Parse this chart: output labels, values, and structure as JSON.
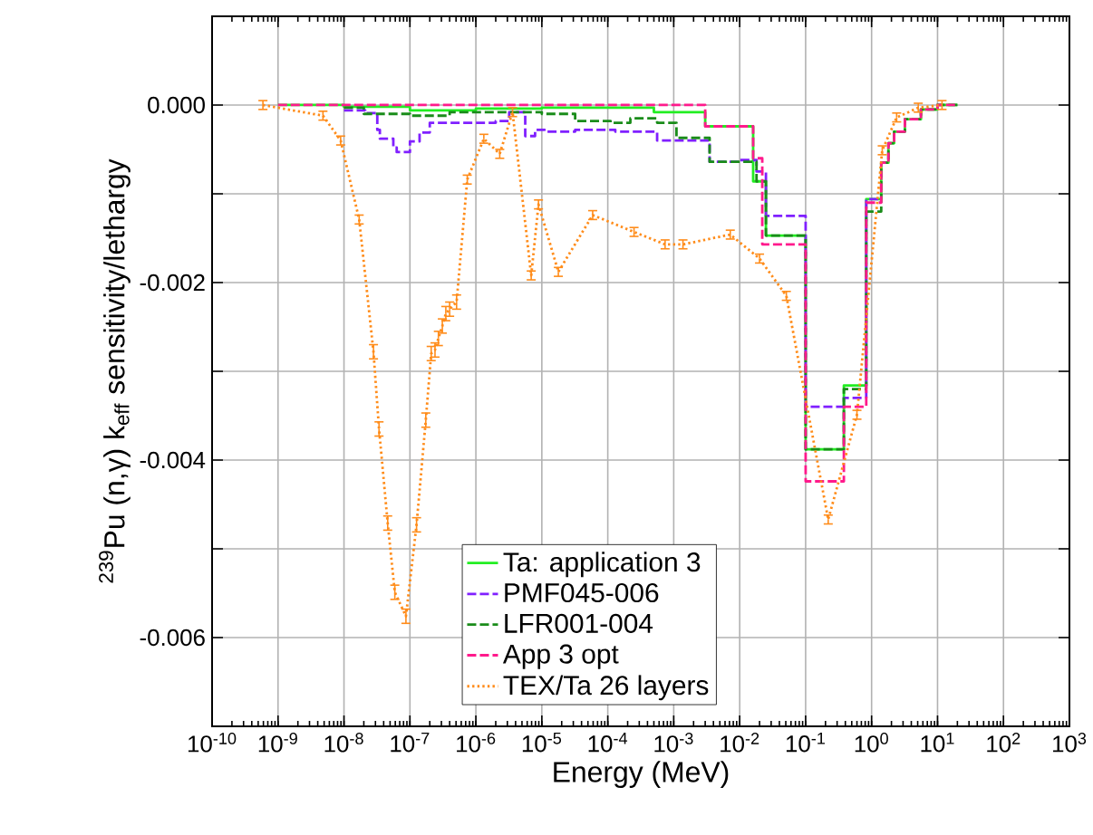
{
  "chart_data": {
    "type": "step",
    "xlabel": "Energy (MeV)",
    "ylabel": "$^{239}$Pu (n,γ) k$_{eff}$ sensitivity/lethargy",
    "log": "x",
    "xlim": [
      1e-10,
      1000
    ],
    "ylim": [
      -0.007,
      0.001
    ],
    "xticks": [
      {
        "value": 1e-10,
        "label": "10$^{-10}$"
      },
      {
        "value": 1e-09,
        "label": "10$^{-9}$"
      },
      {
        "value": 1e-08,
        "label": "10$^{-8}$"
      },
      {
        "value": 1e-07,
        "label": "10$^{-7}$"
      },
      {
        "value": 1e-06,
        "label": "10$^{-6}$"
      },
      {
        "value": 1e-05,
        "label": "10$^{-5}$"
      },
      {
        "value": 0.0001,
        "label": "10$^{-4}$"
      },
      {
        "value": 0.001,
        "label": "10$^{-3}$"
      },
      {
        "value": 0.01,
        "label": "10$^{-2}$"
      },
      {
        "value": 0.1,
        "label": "10$^{-1}$"
      },
      {
        "value": 1,
        "label": "10$^{0}$"
      },
      {
        "value": 10,
        "label": "10$^{1}$"
      },
      {
        "value": 100,
        "label": "10$^{2}$"
      },
      {
        "value": 1000,
        "label": "10$^{3}$"
      }
    ],
    "yticks": [
      {
        "value": -0.006,
        "label": "-0.006"
      },
      {
        "value": -0.005,
        "label": null
      },
      {
        "value": -0.004,
        "label": "-0.004"
      },
      {
        "value": -0.003,
        "label": null
      },
      {
        "value": -0.002,
        "label": "-0.002"
      },
      {
        "value": -0.001,
        "label": null
      },
      {
        "value": 0,
        "label": "0.000"
      }
    ],
    "grid": true,
    "legend": "bottom",
    "marker": "none",
    "series": [
      {
        "name": "Ta: application 3",
        "line_style": "solid",
        "color": "#22ee22",
        "x": [
          1e-09,
          1e-08,
          1e-07,
          1e-06,
          1e-05,
          0.0005,
          0.003,
          0.016,
          0.025,
          0.1,
          0.38,
          0.83,
          1.4,
          1.8,
          2.2,
          3.2,
          5.6,
          10,
          20
        ],
        "values": [
          0,
          -2e-05,
          -6e-05,
          -4e-05,
          -3e-05,
          -8e-05,
          -0.00024,
          -0.00086,
          -0.00147,
          -0.00388,
          -0.00316,
          -0.00106,
          -0.00065,
          -0.00043,
          -0.0003,
          -0.00016,
          -5e-05,
          0,
          0
        ]
      },
      {
        "name": "PMF045-006",
        "line_style": "dashed",
        "color": "#8020ff",
        "x": [
          1e-08,
          2.1e-08,
          3.2e-08,
          3.5e-08,
          5.6e-08,
          6.3e-08,
          1e-07,
          1.4e-07,
          2e-07,
          2e-06,
          3.2e-06,
          5.6e-06,
          7.9e-06,
          1.1e-05,
          3.2e-05,
          0.00013,
          0.00056,
          0.0035,
          0.01,
          0.018,
          0.025,
          0.1,
          0.38,
          0.83,
          1.4
        ],
        "values": [
          -6e-05,
          -9e-05,
          -0.00028,
          -0.00038,
          -0.00048,
          -0.00053,
          -0.00041,
          -0.00031,
          -0.0002,
          -0.00018,
          -8e-05,
          -0.00035,
          -0.00028,
          -0.0003,
          -0.00028,
          -0.0003,
          -0.0004,
          -0.00064,
          -0.00062,
          -0.00075,
          -0.00125,
          -0.0034,
          -0.0033,
          -0.00106,
          -0.00106
        ]
      },
      {
        "name": "LFR001-004",
        "line_style": "dashed",
        "color": "#1a8c1a",
        "x": [
          1e-08,
          2e-08,
          1e-07,
          4e-07,
          1e-05,
          3.2e-05,
          0.00011,
          0.00022,
          0.00056,
          0.0011,
          0.0035,
          0.018,
          0.025,
          0.1,
          0.38,
          0.83,
          1.4,
          1.8,
          2.2,
          3.2,
          5.6,
          10,
          20
        ],
        "values": [
          -3e-05,
          -0.0001,
          -0.00012,
          -8e-05,
          -0.0001,
          -0.00018,
          -0.0002,
          -0.00015,
          -0.0002,
          -0.00037,
          -0.00064,
          -0.00086,
          -0.00147,
          -0.00388,
          -0.0032,
          -0.0012,
          -0.00065,
          -0.00043,
          -0.0003,
          -0.00016,
          -5e-05,
          0,
          0
        ]
      },
      {
        "name": "App 3 opt",
        "line_style": "dashed",
        "color": "#ff1a8c",
        "x": [
          1e-09,
          0.003,
          0.016,
          0.022,
          0.1,
          0.38,
          0.83,
          1.4,
          1.8,
          2.2,
          3.2,
          5.6,
          10,
          20
        ],
        "values": [
          0,
          -0.00024,
          -0.0006,
          -0.00157,
          -0.00424,
          -0.0034,
          -0.0011,
          -0.00065,
          -0.00043,
          -0.0003,
          -0.00016,
          -5e-05,
          0,
          0
        ]
      },
      {
        "name": "TEX/Ta 26 layers",
        "type": "line",
        "line_style": "dotted",
        "color": "#ff8c1a",
        "x": [
          5.9e-10,
          4.8e-09,
          8.9e-09,
          1.7e-08,
          2.8e-08,
          3.4e-08,
          4.6e-08,
          5.9e-08,
          8.7e-08,
          1.26e-07,
          1.74e-07,
          2.1e-07,
          2.4e-07,
          2.7e-07,
          3.1e-07,
          3.5e-07,
          4e-07,
          5.1e-07,
          7.4e-07,
          1.32e-06,
          2.3e-06,
          3.6e-06,
          6.9e-06,
          8.9e-06,
          1.78e-05,
          5.9e-05,
          0.00025,
          0.00074,
          0.00138,
          0.0072,
          0.02,
          0.051,
          0.22,
          0.6,
          1.45,
          2.4,
          5.1,
          11.7
        ],
        "values": [
          0,
          -0.00012,
          -0.0004,
          -0.00129,
          -0.00278,
          -0.00365,
          -0.00471,
          -0.00549,
          -0.00576,
          -0.00473,
          -0.00355,
          -0.0028,
          -0.00276,
          -0.00263,
          -0.00249,
          -0.00235,
          -0.0023,
          -0.00222,
          -0.00084,
          -0.00038,
          -0.00055,
          -8e-05,
          -0.00192,
          -0.00112,
          -0.00188,
          -0.00124,
          -0.00143,
          -0.00157,
          -0.00157,
          -0.00146,
          -0.00173,
          -0.00215,
          -0.00467,
          -0.00349,
          -0.00051,
          -0.00014,
          -3e-05,
          0
        ],
        "errors": [
          5e-05,
          5e-05,
          5e-05,
          5e-05,
          8e-05,
          8e-05,
          8e-05,
          8e-05,
          8e-05,
          8e-05,
          8e-05,
          8e-05,
          8e-05,
          8e-05,
          8e-05,
          8e-05,
          8e-05,
          8e-05,
          5e-05,
          5e-05,
          5e-05,
          5e-05,
          5e-05,
          5e-05,
          5e-05,
          5e-05,
          5e-05,
          5e-05,
          5e-05,
          5e-05,
          5e-05,
          5e-05,
          5e-05,
          5e-05,
          5e-05,
          5e-05,
          5e-05,
          5e-05
        ]
      }
    ]
  }
}
